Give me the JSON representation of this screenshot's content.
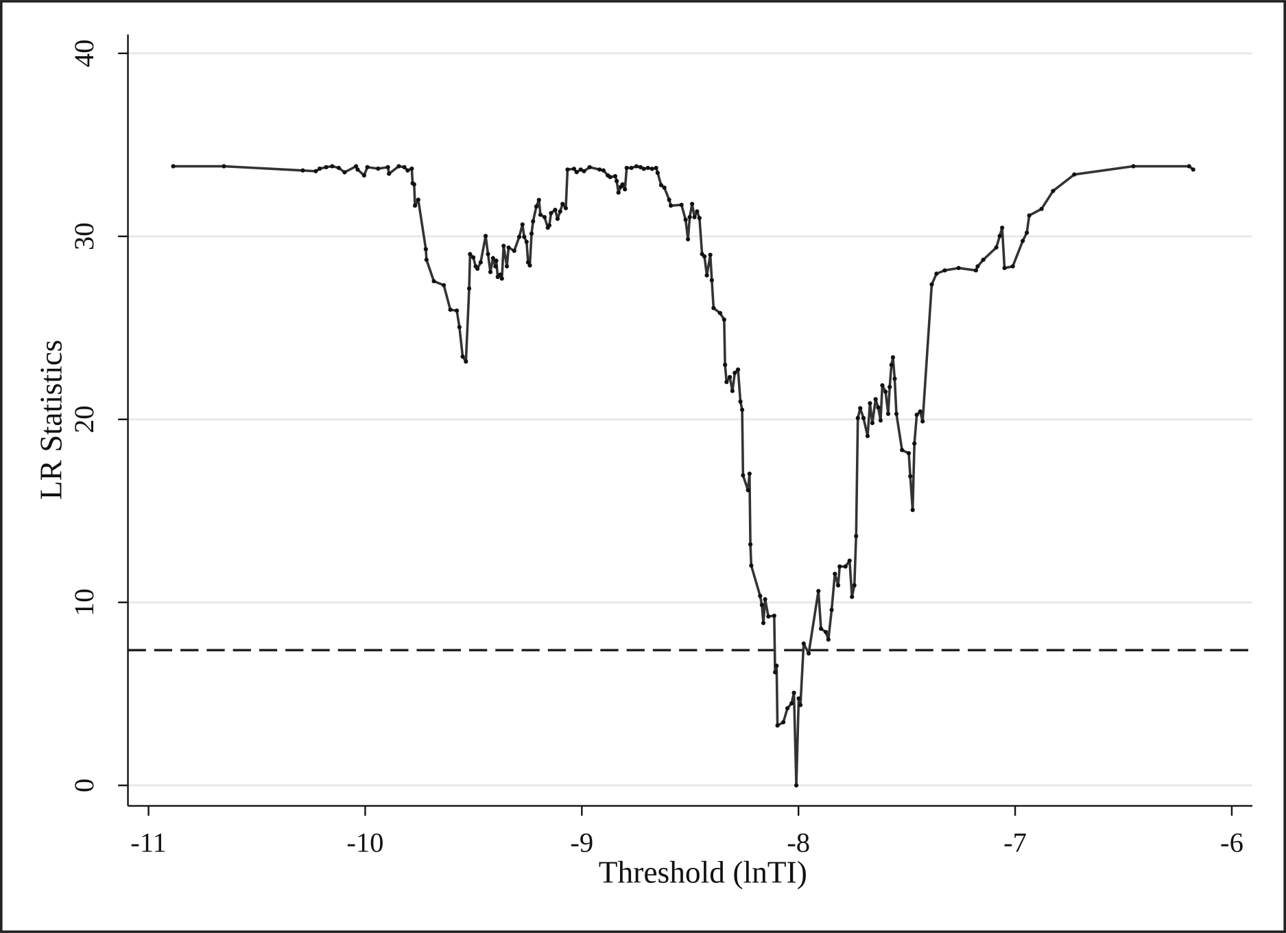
{
  "chart_data": {
    "type": "line",
    "x_label": "Threshold (lnTI)",
    "y_label": "LR Statistics",
    "x": [
      -10.886,
      -10.652,
      -10.288,
      -10.228,
      -10.21,
      -10.18,
      -10.152,
      -10.122,
      -10.095,
      -10.042,
      -10.035,
      -10.005,
      -9.99,
      -9.94,
      -9.895,
      -9.89,
      -9.845,
      -9.819,
      -9.804,
      -9.785,
      -9.781,
      -9.774,
      -9.77,
      -9.755,
      -9.72,
      -9.717,
      -9.683,
      -9.637,
      -9.607,
      -9.577,
      -9.565,
      -9.55,
      -9.535,
      -9.52,
      -9.516,
      -9.501,
      -9.49,
      -9.482,
      -9.467,
      -9.444,
      -9.433,
      -9.422,
      -9.41,
      -9.399,
      -9.395,
      -9.388,
      -9.376,
      -9.369,
      -9.361,
      -9.346,
      -9.338,
      -9.312,
      -9.289,
      -9.274,
      -9.266,
      -9.255,
      -9.248,
      -9.24,
      -9.232,
      -9.225,
      -9.21,
      -9.198,
      -9.191,
      -9.172,
      -9.157,
      -9.15,
      -9.142,
      -9.123,
      -9.112,
      -9.1,
      -9.089,
      -9.074,
      -9.066,
      -9.036,
      -9.024,
      -9.005,
      -8.99,
      -8.964,
      -8.918,
      -8.9,
      -8.88,
      -8.869,
      -8.846,
      -8.839,
      -8.831,
      -8.82,
      -8.812,
      -8.801,
      -8.793,
      -8.771,
      -8.748,
      -8.729,
      -8.714,
      -8.695,
      -8.676,
      -8.657,
      -8.65,
      -8.634,
      -8.619,
      -8.597,
      -8.589,
      -8.54,
      -8.521,
      -8.51,
      -8.502,
      -8.491,
      -8.48,
      -8.468,
      -8.457,
      -8.445,
      -8.434,
      -8.423,
      -8.407,
      -8.4,
      -8.392,
      -8.362,
      -8.343,
      -8.339,
      -8.332,
      -8.317,
      -8.305,
      -8.294,
      -8.279,
      -8.268,
      -8.26,
      -8.256,
      -8.233,
      -8.226,
      -8.222,
      -8.218,
      -8.177,
      -8.169,
      -8.162,
      -8.154,
      -8.139,
      -8.112,
      -8.108,
      -8.101,
      -8.097,
      -8.07,
      -8.051,
      -8.032,
      -8.021,
      -8.01,
      -7.999,
      -7.991,
      -7.976,
      -7.953,
      -7.908,
      -7.896,
      -7.874,
      -7.862,
      -7.847,
      -7.832,
      -7.817,
      -7.81,
      -7.783,
      -7.764,
      -7.753,
      -7.742,
      -7.734,
      -7.726,
      -7.715,
      -7.7,
      -7.681,
      -7.67,
      -7.659,
      -7.644,
      -7.632,
      -7.621,
      -7.613,
      -7.598,
      -7.586,
      -7.579,
      -7.571,
      -7.564,
      -7.556,
      -7.548,
      -7.522,
      -7.491,
      -7.484,
      -7.473,
      -7.465,
      -7.454,
      -7.438,
      -7.427,
      -7.385,
      -7.363,
      -7.325,
      -7.261,
      -7.181,
      -7.173,
      -7.147,
      -7.087,
      -7.071,
      -7.06,
      -7.049,
      -7.011,
      -6.965,
      -6.946,
      -6.935,
      -6.878,
      -6.825,
      -6.727,
      -6.454,
      -6.197,
      -6.178
    ],
    "values": [
      33.83,
      33.83,
      33.6,
      33.56,
      33.7,
      33.78,
      33.83,
      33.74,
      33.5,
      33.83,
      33.65,
      33.33,
      33.78,
      33.7,
      33.78,
      33.42,
      33.83,
      33.78,
      33.6,
      33.7,
      32.9,
      32.84,
      31.68,
      32.0,
      29.3,
      28.72,
      27.55,
      27.33,
      25.99,
      25.94,
      25.04,
      23.43,
      23.16,
      27.15,
      29.03,
      28.85,
      28.36,
      28.23,
      28.58,
      30.02,
      29.03,
      28.05,
      28.81,
      28.36,
      28.67,
      27.78,
      27.91,
      27.69,
      29.48,
      28.36,
      29.39,
      29.21,
      29.97,
      30.65,
      29.97,
      29.7,
      28.58,
      28.41,
      30.15,
      30.82,
      31.63,
      31.99,
      31.18,
      31.05,
      30.47,
      30.6,
      31.27,
      31.45,
      30.96,
      31.36,
      31.77,
      31.54,
      33.65,
      33.69,
      33.51,
      33.65,
      33.56,
      33.78,
      33.65,
      33.6,
      33.33,
      33.24,
      33.29,
      33.02,
      32.39,
      32.71,
      32.84,
      32.57,
      33.74,
      33.74,
      33.83,
      33.78,
      33.69,
      33.74,
      33.69,
      33.74,
      33.47,
      32.8,
      32.66,
      32.0,
      31.68,
      31.72,
      30.91,
      29.84,
      31.05,
      31.77,
      31.05,
      31.36,
      31.0,
      29.03,
      28.9,
      27.87,
      28.99,
      27.6,
      26.08,
      25.81,
      25.45,
      22.98,
      22.04,
      22.31,
      21.55,
      22.54,
      22.72,
      20.97,
      20.52,
      16.94,
      16.13,
      17.03,
      13.17,
      12.01,
      10.35,
      9.86,
      8.87,
      10.17,
      9.23,
      9.27,
      6.18,
      6.54,
      3.27,
      3.45,
      4.21,
      4.48,
      5.06,
      0,
      4.75,
      4.39,
      7.75,
      7.21,
      10.62,
      8.56,
      8.38,
      7.97,
      9.59,
      11.56,
      10.93,
      11.96,
      11.96,
      12.28,
      10.3,
      10.93,
      13.62,
      20.07,
      20.61,
      20.07,
      19.09,
      20.88,
      19.8,
      21.1,
      20.65,
      19.94,
      21.86,
      21.51,
      20.3,
      21.77,
      22.98,
      23.39,
      22.22,
      20.3,
      18.32,
      18.15,
      16.89,
      15.05,
      18.68,
      20.25,
      20.43,
      19.89,
      27.37,
      27.96,
      28.14,
      28.27,
      28.14,
      28.36,
      28.72,
      29.39,
      30.02,
      30.47,
      28.27,
      28.36,
      29.75,
      30.2,
      31.14,
      31.5,
      32.48,
      33.38,
      33.83,
      33.83,
      33.65
    ],
    "color": "#333333",
    "hline": 7.39,
    "hline_color": "#222222",
    "xlim": [
      -11.095,
      -5.905
    ],
    "xticks": [
      -11,
      -10,
      -9,
      -8,
      -7,
      -6
    ],
    "ylim": [
      -1.12,
      41.03
    ],
    "yticks": [
      0,
      10,
      20,
      30,
      40
    ],
    "grid": true,
    "grid_color": "#e8e8e8"
  }
}
